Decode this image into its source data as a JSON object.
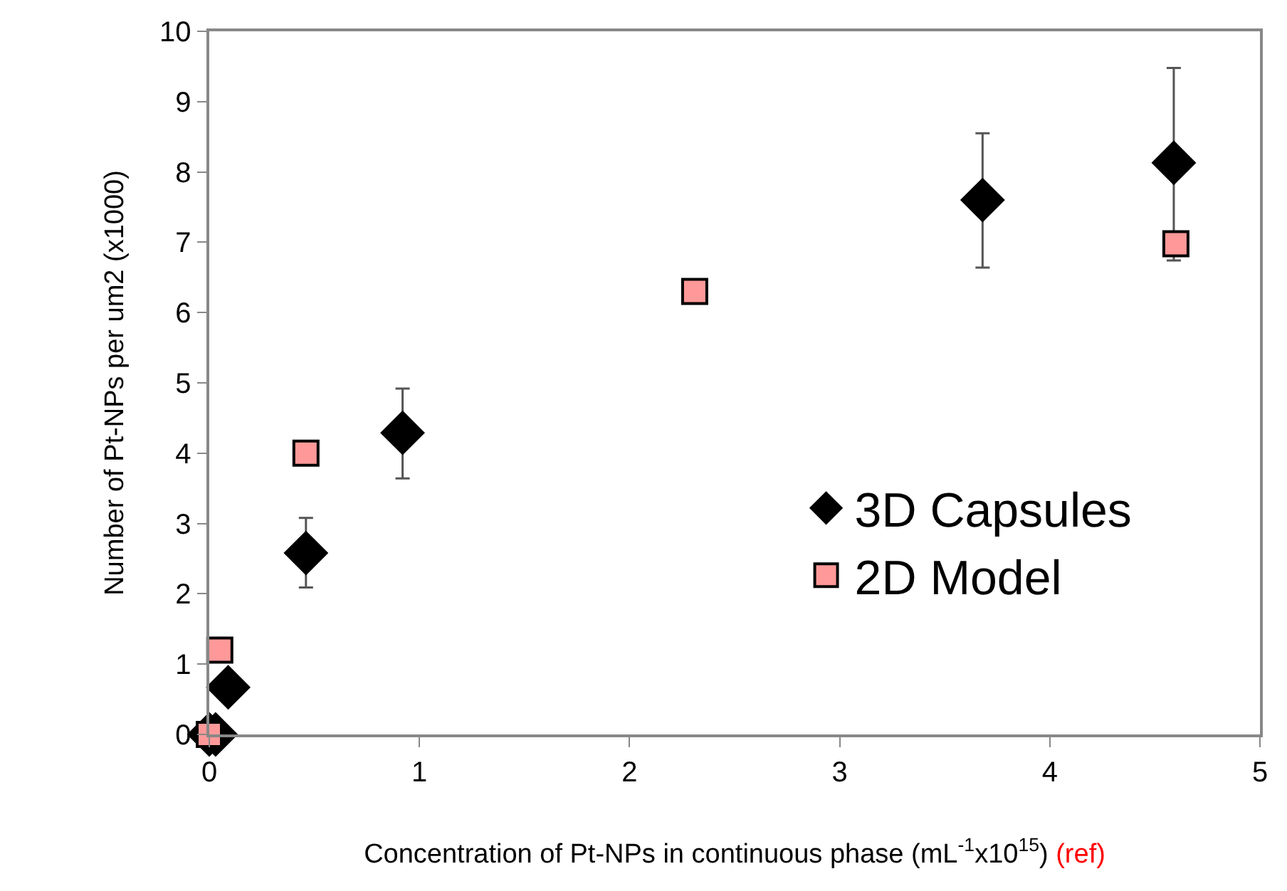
{
  "chart_data": {
    "type": "scatter",
    "xlabel": "Concentration of Pt-NPs in continuous phase (mL$^{-1}$x10$^{15}$)",
    "ylabel": "Number of Pt-NPs per um2 (x1000)",
    "annotations": [
      "(ref)"
    ],
    "xlim": [
      0,
      5
    ],
    "xticks": [
      0,
      1,
      2,
      3,
      4,
      5
    ],
    "ylim": [
      0,
      10
    ],
    "yticks": [
      0,
      1,
      2,
      3,
      4,
      5,
      6,
      7,
      8,
      9,
      10
    ],
    "legend": "bottom right",
    "series": [
      {
        "name": "3D Capsules",
        "color": "#000000",
        "marker": "diamond",
        "x": [
          0.0,
          0.03,
          0.09,
          0.46,
          0.92,
          3.68,
          4.59
        ],
        "values": [
          0,
          0,
          0.67,
          2.58,
          4.29,
          7.6,
          8.13
        ],
        "errors": [
          null,
          null,
          null,
          [
            2.09,
            3.08
          ],
          [
            3.64,
            4.92
          ],
          [
            6.64,
            8.55
          ],
          [
            6.74,
            9.48
          ]
        ]
      },
      {
        "name": "2D Model",
        "color": "#ff9999",
        "marker": "square",
        "x": [
          0.0,
          0.05,
          0.46,
          2.31,
          4.6
        ],
        "values": [
          0,
          1.2,
          4.0,
          6.3,
          6.98
        ]
      }
    ]
  }
}
